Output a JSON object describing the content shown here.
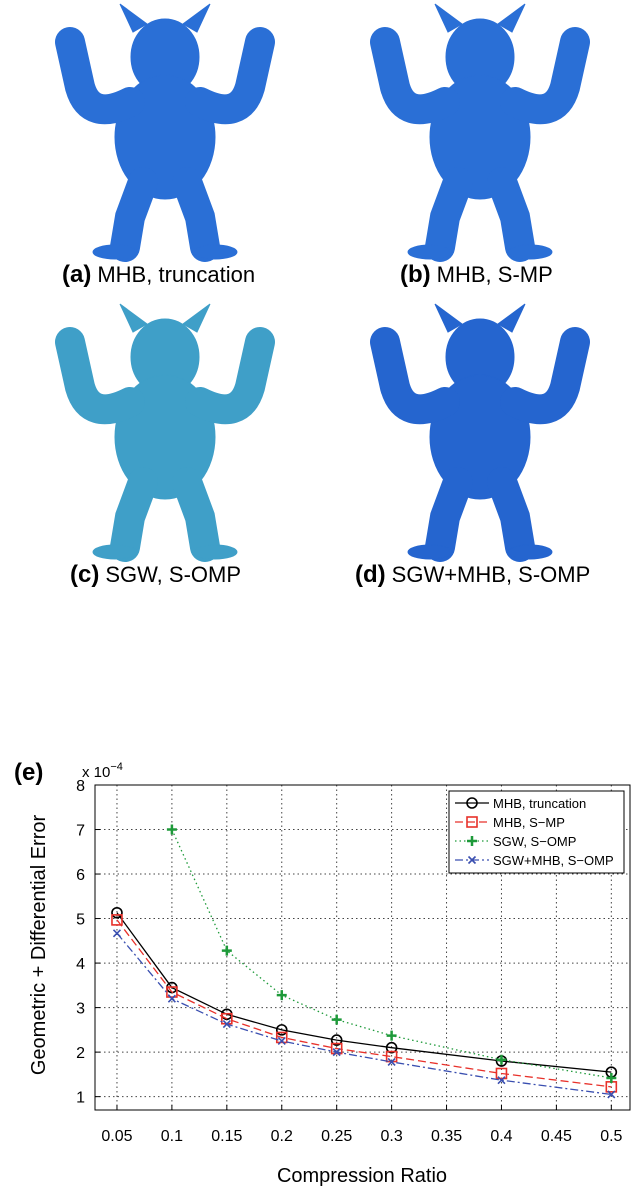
{
  "panels": [
    {
      "label": "(a)",
      "caption": "MHB, truncation"
    },
    {
      "label": "(b)",
      "caption": "MHB, S-MP"
    },
    {
      "label": "(c)",
      "caption": "SGW, S-OMP"
    },
    {
      "label": "(d)",
      "caption": "SGW+MHB, S-OMP"
    }
  ],
  "chart_data": {
    "type": "line",
    "panel_label": "(e)",
    "multiplier": {
      "base": "x 10",
      "exponent": "−4"
    },
    "x_label": "Compression Ratio",
    "y_label": "Geometric + Differential Error",
    "x": [
      0.05,
      0.1,
      0.15,
      0.2,
      0.25,
      0.3,
      0.4,
      0.5
    ],
    "series": [
      {
        "name": "MHB, truncation",
        "color": "#000000",
        "marker": "circle",
        "dash": "solid",
        "values": [
          5.13,
          3.45,
          2.85,
          2.5,
          2.27,
          2.1,
          1.8,
          1.55
        ]
      },
      {
        "name": "MHB, S−MP",
        "color": "#e8312a",
        "marker": "square",
        "dash": "dashed",
        "values": [
          4.97,
          3.35,
          2.75,
          2.33,
          2.08,
          1.9,
          1.52,
          1.22
        ]
      },
      {
        "name": "SGW, S−OMP",
        "color": "#1e9a3a",
        "marker": "plus",
        "dash": "dotted",
        "values": [
          null,
          7.0,
          4.28,
          3.28,
          2.73,
          2.37,
          1.83,
          1.42
        ]
      },
      {
        "name": "SGW+MHB, S−OMP",
        "color": "#3a4fb0",
        "marker": "x",
        "dash": "dashdot",
        "values": [
          4.67,
          3.2,
          2.63,
          2.25,
          2.0,
          1.78,
          1.37,
          1.05
        ]
      }
    ],
    "xlim": [
      0.03,
      0.517
    ],
    "xticks": [
      0.05,
      0.1,
      0.15,
      0.2,
      0.25,
      0.3,
      0.35,
      0.4,
      0.45,
      0.5
    ],
    "ylim": [
      0.7,
      8
    ],
    "yticks": [
      1,
      2,
      3,
      4,
      5,
      6,
      7,
      8
    ],
    "grid": true,
    "legend": "top-right"
  }
}
